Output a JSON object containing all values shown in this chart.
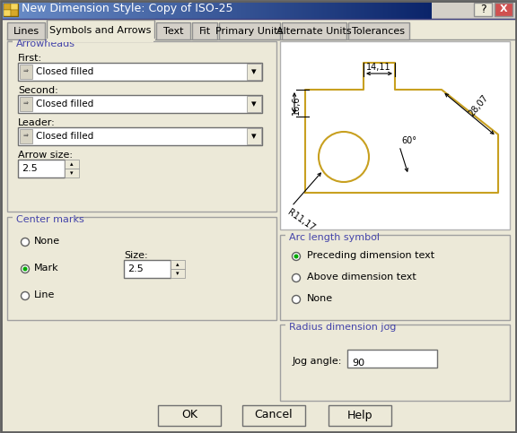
{
  "title": "New Dimension Style: Copy of ISO-25",
  "tabs": [
    "Lines",
    "Symbols and Arrows",
    "Text",
    "Fit",
    "Primary Units",
    "Alternate Units",
    "Tolerances"
  ],
  "active_tab": "Symbols and Arrows",
  "bg_color": "#ECE9D8",
  "dialog_bg": "#D4D0C8",
  "title_bar_left": "#6B8EC9",
  "title_bar_right": "#0A246A",
  "title_bar_text_color": "#FFFFFF",
  "group_label_color": "#4444AA",
  "section_arrowheads": "Arrowheads",
  "label_first": "First:",
  "label_second": "Second:",
  "label_leader": "Leader:",
  "label_arrow_size": "Arrow size:",
  "dropdown_value": "Closed filled",
  "arrow_size_value": "2.5",
  "section_center_marks": "Center marks",
  "radio_none": "None",
  "radio_mark": "Mark",
  "radio_line": "Line",
  "label_size": "Size:",
  "size_value": "2.5",
  "section_arc": "Arc length symbol",
  "arc_radio1": "Preceding dimension text",
  "arc_radio2": "Above dimension text",
  "arc_radio3": "None",
  "section_jog": "Radius dimension jog",
  "jog_label": "Jog angle:",
  "jog_value": "90",
  "btn_ok": "OK",
  "btn_cancel": "Cancel",
  "btn_help": "Help",
  "preview_shape_color": "#C8A020",
  "preview_dim_color": "#000000",
  "preview_bg": "#FFFFFF",
  "tab_active_color": "#ECE9D8",
  "tab_inactive_color": "#D4D0C8",
  "border_color": "#808080",
  "text_color": "#000000",
  "radio_fill_color": "#00AA00"
}
